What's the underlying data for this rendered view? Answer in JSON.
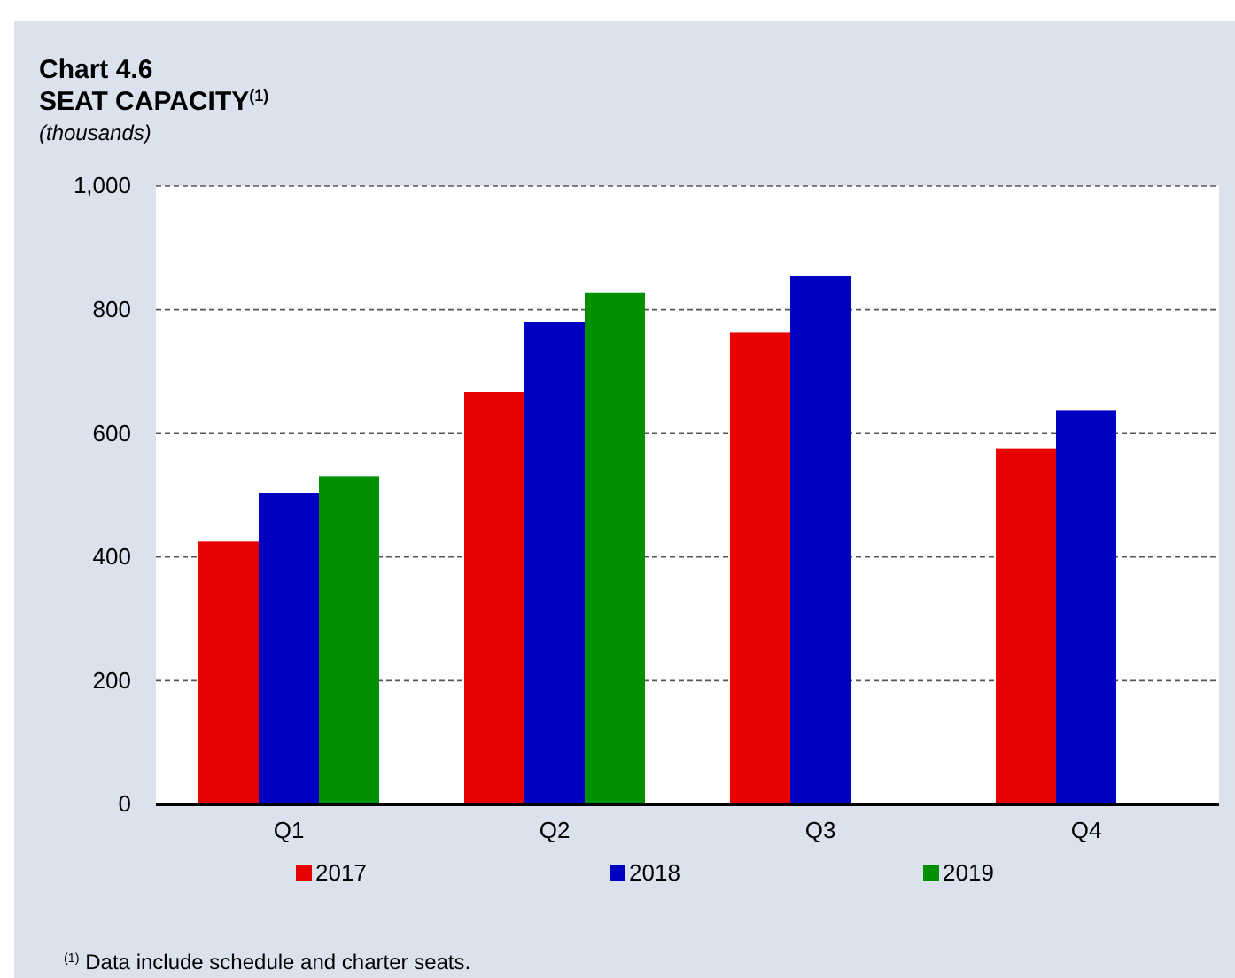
{
  "chart_data": {
    "type": "bar",
    "title": "Chart 4.6",
    "subtitle": "SEAT CAPACITY$^{(1)}$",
    "ylabel": "(thousands)",
    "categories": [
      "Q1",
      "Q2",
      "Q3",
      "Q4"
    ],
    "series": [
      {
        "name": "2017",
        "color": "#e60000",
        "values": [
          425,
          667,
          763,
          575
        ]
      },
      {
        "name": "2018",
        "color": "#0000c0",
        "values": [
          504,
          780,
          854,
          637
        ]
      },
      {
        "name": "2019",
        "color": "#009000",
        "values": [
          531,
          827,
          null,
          null
        ]
      }
    ],
    "ylim": [
      0,
      1000
    ],
    "yticks": [
      0,
      200,
      400,
      600,
      800,
      {
        "value": 1000,
        "label": "1,000"
      }
    ],
    "grid": "y",
    "legend": "bottom",
    "annotations": [
      "$^{(1)}$ Data include schedule and charter seats."
    ]
  }
}
